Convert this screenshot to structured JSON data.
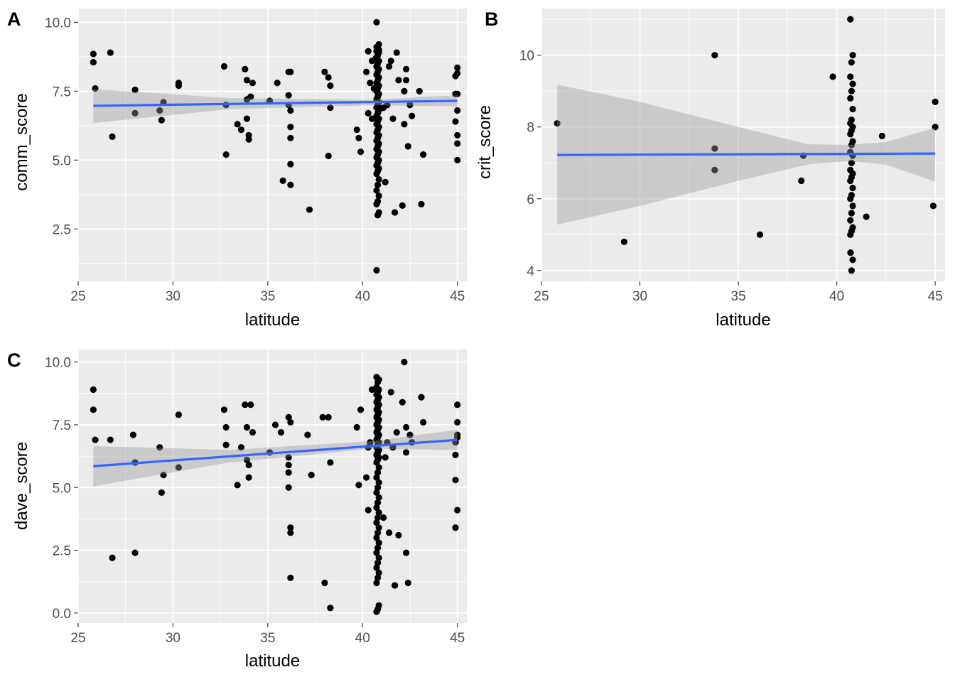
{
  "chart_data": [
    {
      "tag": "A",
      "type": "scatter",
      "xlabel": "latitude",
      "ylabel": "comm_score",
      "xlim": [
        25,
        45.5
      ],
      "ylim": [
        0.6,
        10.5
      ],
      "xticks": [
        25,
        30,
        35,
        40,
        45
      ],
      "yticks": [
        2.5,
        5.0,
        7.5,
        10.0
      ],
      "ytick_labels": [
        "2.5",
        "5.0",
        "7.5",
        "10.0"
      ],
      "fit": {
        "x": [
          25.8,
          45
        ],
        "y": [
          6.97,
          7.15
        ]
      },
      "band": {
        "x": [
          25.8,
          33,
          40.5,
          45
        ],
        "lower": [
          6.35,
          6.85,
          6.99,
          6.95
        ],
        "upper": [
          7.58,
          7.25,
          7.19,
          7.35
        ]
      },
      "points": {
        "x": [
          25.8,
          25.8,
          25.9,
          26.7,
          26.8,
          28,
          28,
          29.3,
          29.4,
          29.5,
          30.3,
          30.3,
          32.7,
          32.8,
          32.8,
          33.4,
          33.6,
          33.8,
          33.9,
          33.9,
          33.9,
          34,
          34,
          34.1,
          34.2,
          35.1,
          35.5,
          35.8,
          36.1,
          36.1,
          36.1,
          36.2,
          36.2,
          36.2,
          36.2,
          36.2,
          36.2,
          37.2,
          38,
          38.2,
          38.2,
          38.3,
          38.3,
          39.7,
          39.8,
          39.9,
          40.2,
          40.3,
          40.3,
          40.4,
          40.5,
          40.5,
          40.6,
          40.7,
          41.1,
          41.2,
          41.3,
          41.4,
          41.5,
          41.6,
          41.7,
          41.8,
          41.9,
          42.1,
          42.2,
          42.2,
          42.3,
          42.3,
          42.4,
          42.5,
          42.6,
          43.1,
          43.2,
          43,
          44.9,
          45,
          45,
          45,
          45,
          44.9,
          45,
          45,
          45,
          44.9
        ],
        "y": [
          8.85,
          8.55,
          7.6,
          8.9,
          5.85,
          7.55,
          6.7,
          6.8,
          6.45,
          7.1,
          7.8,
          7.7,
          8.4,
          7.0,
          5.2,
          6.3,
          6.1,
          8.3,
          7.9,
          7.2,
          6.5,
          5.9,
          5.75,
          7.3,
          7.8,
          7.15,
          7.8,
          4.25,
          8.2,
          7.35,
          7.0,
          6.8,
          6.2,
          5.8,
          4.85,
          4.1,
          8.2,
          3.2,
          8.2,
          5.15,
          8.0,
          7.7,
          6.9,
          6.1,
          5.8,
          5.3,
          8.2,
          6.7,
          8.95,
          7.8,
          6.5,
          8.6,
          7.6,
          8.7,
          6.9,
          4.2,
          7.0,
          8.4,
          8.6,
          6.5,
          3.1,
          8.9,
          7.9,
          3.35,
          7.5,
          6.3,
          8.3,
          7.9,
          5.5,
          7.0,
          6.6,
          3.4,
          5.2,
          7.5,
          8.05,
          8.35,
          8.15,
          7.4,
          6.8,
          6.4,
          5.9,
          5.6,
          5.0,
          7.4
        ]
      },
      "cluster": {
        "x": 40.8,
        "y": [
          10.0,
          9.2,
          9.1,
          9.1,
          9.0,
          9.0,
          8.95,
          8.9,
          8.8,
          8.7,
          8.6,
          8.5,
          8.4,
          8.3,
          8.2,
          8.1,
          8.0,
          7.9,
          7.8,
          7.7,
          7.6,
          7.5,
          7.4,
          7.3,
          7.2,
          7.1,
          7.0,
          6.9,
          6.8,
          6.7,
          6.6,
          6.5,
          6.4,
          6.3,
          6.2,
          6.1,
          6.0,
          5.9,
          5.8,
          5.7,
          5.6,
          5.5,
          5.4,
          5.3,
          5.2,
          5.1,
          5.0,
          4.9,
          4.8,
          4.7,
          4.6,
          4.5,
          4.3,
          4.1,
          3.9,
          3.7,
          3.5,
          3.4,
          3.1,
          3.0,
          1.0
        ]
      }
    },
    {
      "tag": "B",
      "type": "scatter",
      "xlabel": "latitude",
      "ylabel": "crit_score",
      "xlim": [
        25,
        45.5
      ],
      "ylim": [
        3.7,
        11.3
      ],
      "xticks": [
        25,
        30,
        35,
        40,
        45
      ],
      "yticks": [
        4,
        6,
        8,
        10
      ],
      "ytick_labels": [
        "4",
        "6",
        "8",
        "10"
      ],
      "fit": {
        "x": [
          25.8,
          45
        ],
        "y": [
          7.22,
          7.26
        ]
      },
      "band": {
        "x": [
          25.8,
          30,
          35,
          38.5,
          40.6,
          42.5,
          45
        ],
        "lower": [
          5.28,
          5.8,
          6.5,
          6.95,
          7.05,
          6.95,
          6.48
        ],
        "upper": [
          9.18,
          8.7,
          8.0,
          7.52,
          7.5,
          7.58,
          7.98
        ]
      },
      "points": {
        "x": [
          25.8,
          29.2,
          33.8,
          33.8,
          33.8,
          36.1,
          38.2,
          38.3,
          39.8,
          41.5,
          42.3,
          44.9,
          45,
          45,
          40.7
        ],
        "y": [
          8.1,
          4.8,
          10.0,
          7.4,
          6.8,
          5.0,
          6.5,
          7.2,
          9.4,
          5.5,
          7.75,
          5.8,
          8.7,
          8.0,
          4.5
        ]
      },
      "cluster": {
        "x": 40.75,
        "y": [
          11.0,
          10.0,
          9.8,
          9.4,
          9.2,
          9.0,
          8.8,
          8.5,
          8.2,
          8.1,
          8.0,
          7.9,
          7.8,
          7.6,
          7.5,
          7.3,
          7.2,
          7.0,
          6.8,
          6.7,
          6.6,
          6.5,
          6.3,
          6.1,
          6.0,
          5.8,
          5.6,
          5.4,
          5.2,
          5.1,
          5.0,
          4.3,
          4.0
        ]
      }
    },
    {
      "tag": "C",
      "type": "scatter",
      "xlabel": "latitude",
      "ylabel": "dave_score",
      "xlim": [
        25,
        45.5
      ],
      "ylim": [
        -0.4,
        10.5
      ],
      "xticks": [
        25,
        30,
        35,
        40,
        45
      ],
      "yticks": [
        0.0,
        2.5,
        5.0,
        7.5,
        10.0
      ],
      "ytick_labels": [
        "0.0",
        "2.5",
        "5.0",
        "7.5",
        "10.0"
      ],
      "fit": {
        "x": [
          25.8,
          45
        ],
        "y": [
          5.85,
          6.9
        ]
      },
      "band": {
        "x": [
          25.8,
          33,
          40.5,
          45
        ],
        "lower": [
          5.05,
          6.0,
          6.55,
          6.5
        ],
        "upper": [
          6.65,
          6.5,
          6.85,
          7.3
        ]
      },
      "points": {
        "x": [
          25.8,
          25.8,
          25.9,
          26.7,
          26.8,
          27.9,
          28,
          28,
          29.3,
          29.4,
          29.5,
          30.3,
          30.3,
          32.7,
          32.8,
          32.8,
          33.4,
          33.6,
          33.8,
          33.9,
          33.9,
          34,
          34,
          34.1,
          34.2,
          35.1,
          35.4,
          35.7,
          36.1,
          36.1,
          36.1,
          36.1,
          36.1,
          36.2,
          36.2,
          36.2,
          36.2,
          37.1,
          37.3,
          37.9,
          38,
          38.2,
          38.3,
          38.3,
          39.7,
          39.8,
          39.9,
          40.2,
          40.3,
          40.3,
          40.4,
          40.5,
          41.1,
          41.2,
          41.3,
          41.4,
          41.5,
          41.6,
          41.7,
          41.8,
          41.9,
          42.1,
          42.2,
          42.3,
          42.3,
          42.3,
          42.4,
          42.5,
          42.6,
          43.1,
          43.2,
          44.9,
          45,
          45,
          45,
          45,
          44.9,
          45,
          44.9,
          44.9
        ],
        "y": [
          8.9,
          8.1,
          6.9,
          6.9,
          2.2,
          7.1,
          6.0,
          2.4,
          6.6,
          4.8,
          5.5,
          7.9,
          5.8,
          8.1,
          7.4,
          6.7,
          5.1,
          6.6,
          8.3,
          7.4,
          6.1,
          5.9,
          5.4,
          8.3,
          7.2,
          6.4,
          7.5,
          7.2,
          7.8,
          6.2,
          5.9,
          5.6,
          5.0,
          3.4,
          3.2,
          1.4,
          7.6,
          7.1,
          5.5,
          7.8,
          1.2,
          7.8,
          6.0,
          0.2,
          7.4,
          5.1,
          8.1,
          5.4,
          6.6,
          4.1,
          6.8,
          8.9,
          3.8,
          6.2,
          6.8,
          3.2,
          8.8,
          6.6,
          1.1,
          7.2,
          3.1,
          8.4,
          10.0,
          7.4,
          6.4,
          2.4,
          1.2,
          7.1,
          6.8,
          8.6,
          7.6,
          5.3,
          8.3,
          7.6,
          7.1,
          7.0,
          6.3,
          4.1,
          3.4,
          6.8
        ]
      },
      "cluster": {
        "x": 40.8,
        "y": [
          9.4,
          9.3,
          9.2,
          9.0,
          8.9,
          8.8,
          8.7,
          8.6,
          8.5,
          8.4,
          8.3,
          8.2,
          8.1,
          8.0,
          7.9,
          7.8,
          7.7,
          7.6,
          7.5,
          7.4,
          7.3,
          7.2,
          7.1,
          7.0,
          6.9,
          6.8,
          6.7,
          6.6,
          6.5,
          6.4,
          6.3,
          6.2,
          6.1,
          6.0,
          5.8,
          5.6,
          5.4,
          5.2,
          5.0,
          4.8,
          4.6,
          4.4,
          4.2,
          4.0,
          3.8,
          3.6,
          3.4,
          3.2,
          3.0,
          2.8,
          2.6,
          2.4,
          2.2,
          2.0,
          1.8,
          1.6,
          1.4,
          1.2,
          0.3,
          0.15,
          0.05
        ]
      }
    }
  ]
}
